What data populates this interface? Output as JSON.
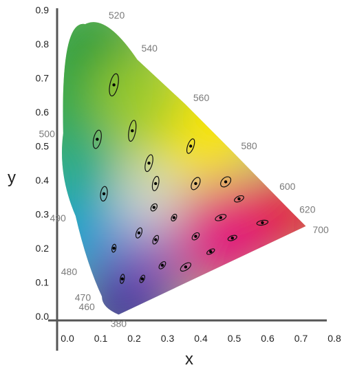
{
  "chart_data": {
    "type": "scatter",
    "xlabel": "x",
    "ylabel": "y",
    "xlim": [
      0.0,
      0.8
    ],
    "ylim": [
      0.0,
      0.9
    ],
    "x_ticks": [
      "0.0",
      "0.1",
      "0.2",
      "0.3",
      "0.4",
      "0.5",
      "0.6",
      "0.7",
      "0.8"
    ],
    "y_ticks": [
      "0.0",
      "0.1",
      "0.2",
      "0.3",
      "0.4",
      "0.5",
      "0.6",
      "0.7",
      "0.8",
      "0.9"
    ],
    "grid": false,
    "spectral_locus": [
      {
        "nm": "380",
        "x": 0.174,
        "y": 0.005
      },
      {
        "nm": "460",
        "x": 0.144,
        "y": 0.03
      },
      {
        "nm": "470",
        "x": 0.124,
        "y": 0.058
      },
      {
        "nm": "480",
        "x": 0.091,
        "y": 0.133
      },
      {
        "nm": "490",
        "x": 0.045,
        "y": 0.295
      },
      {
        "nm": "500",
        "x": 0.008,
        "y": 0.538
      },
      {
        "nm": "520",
        "x": 0.074,
        "y": 0.834
      },
      {
        "nm": "540",
        "x": 0.23,
        "y": 0.754
      },
      {
        "nm": "560",
        "x": 0.373,
        "y": 0.624
      },
      {
        "nm": "580",
        "x": 0.512,
        "y": 0.487
      },
      {
        "nm": "600",
        "x": 0.627,
        "y": 0.372
      },
      {
        "nm": "620",
        "x": 0.691,
        "y": 0.308
      },
      {
        "nm": "700",
        "x": 0.735,
        "y": 0.265
      }
    ],
    "macadam_ellipses": [
      {
        "x": 0.16,
        "y": 0.68,
        "a": 0.034,
        "b": 0.012,
        "angle": 78
      },
      {
        "x": 0.11,
        "y": 0.52,
        "a": 0.028,
        "b": 0.011,
        "angle": 78
      },
      {
        "x": 0.215,
        "y": 0.545,
        "a": 0.032,
        "b": 0.01,
        "angle": 80
      },
      {
        "x": 0.13,
        "y": 0.36,
        "a": 0.022,
        "b": 0.01,
        "angle": 82
      },
      {
        "x": 0.265,
        "y": 0.45,
        "a": 0.026,
        "b": 0.01,
        "angle": 75
      },
      {
        "x": 0.285,
        "y": 0.39,
        "a": 0.022,
        "b": 0.009,
        "angle": 78
      },
      {
        "x": 0.39,
        "y": 0.5,
        "a": 0.023,
        "b": 0.009,
        "angle": 70
      },
      {
        "x": 0.405,
        "y": 0.39,
        "a": 0.02,
        "b": 0.011,
        "angle": 62
      },
      {
        "x": 0.495,
        "y": 0.395,
        "a": 0.018,
        "b": 0.012,
        "angle": 45
      },
      {
        "x": 0.28,
        "y": 0.32,
        "a": 0.012,
        "b": 0.008,
        "angle": 55
      },
      {
        "x": 0.34,
        "y": 0.29,
        "a": 0.011,
        "b": 0.007,
        "angle": 60
      },
      {
        "x": 0.535,
        "y": 0.345,
        "a": 0.015,
        "b": 0.008,
        "angle": 25
      },
      {
        "x": 0.48,
        "y": 0.29,
        "a": 0.017,
        "b": 0.008,
        "angle": 20
      },
      {
        "x": 0.605,
        "y": 0.275,
        "a": 0.017,
        "b": 0.007,
        "angle": 10
      },
      {
        "x": 0.235,
        "y": 0.245,
        "a": 0.016,
        "b": 0.008,
        "angle": 70
      },
      {
        "x": 0.285,
        "y": 0.225,
        "a": 0.014,
        "b": 0.007,
        "angle": 65
      },
      {
        "x": 0.405,
        "y": 0.235,
        "a": 0.013,
        "b": 0.008,
        "angle": 45
      },
      {
        "x": 0.515,
        "y": 0.23,
        "a": 0.014,
        "b": 0.007,
        "angle": 20
      },
      {
        "x": 0.16,
        "y": 0.2,
        "a": 0.012,
        "b": 0.006,
        "angle": 80
      },
      {
        "x": 0.305,
        "y": 0.15,
        "a": 0.013,
        "b": 0.007,
        "angle": 50
      },
      {
        "x": 0.375,
        "y": 0.145,
        "a": 0.018,
        "b": 0.009,
        "angle": 35
      },
      {
        "x": 0.45,
        "y": 0.19,
        "a": 0.013,
        "b": 0.006,
        "angle": 30
      },
      {
        "x": 0.245,
        "y": 0.11,
        "a": 0.012,
        "b": 0.006,
        "angle": 65
      },
      {
        "x": 0.185,
        "y": 0.11,
        "a": 0.014,
        "b": 0.006,
        "angle": 80
      }
    ]
  }
}
